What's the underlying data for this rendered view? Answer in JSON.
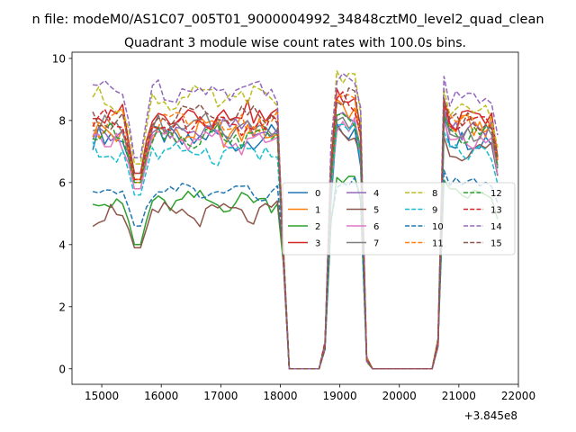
{
  "figure": {
    "suptitle": "n file: modeM0/AS1C07_005T01_9000004992_34848cztM0_level2_quad_clean",
    "background": "#ffffff"
  },
  "chart_data": {
    "type": "line",
    "title": "Quadrant 3 module wise count rates with 100.0s bins.",
    "xlabel": "",
    "ylabel": "",
    "x_offset_label": "+3.845e8",
    "xlim": [
      14500,
      22000
    ],
    "ylim": [
      -0.5,
      10.2
    ],
    "xticks": [
      15000,
      16000,
      17000,
      18000,
      19000,
      20000,
      21000,
      22000
    ],
    "xtick_labels": [
      "15000",
      "16000",
      "17000",
      "18000",
      "19000",
      "20000",
      "21000",
      "22000"
    ],
    "yticks": [
      0,
      2,
      4,
      6,
      8,
      10
    ],
    "ytick_labels": [
      "0",
      "2",
      "4",
      "6",
      "8",
      "10"
    ],
    "grid": false,
    "legend_location": "center-right",
    "legend_ncol": 4,
    "segments": [
      {
        "x_start": 14850,
        "x_end": 17950
      },
      {
        "x_start": 18050,
        "x_end": 18050
      },
      {
        "x_start": 18150,
        "x_end": 18650
      },
      {
        "x_start": 18750,
        "x_end": 18750
      },
      {
        "x_start": 18850,
        "x_end": 19350
      },
      {
        "x_start": 19450,
        "x_end": 19450
      },
      {
        "x_start": 19550,
        "x_end": 20550
      },
      {
        "x_start": 20650,
        "x_end": 20650
      },
      {
        "x_start": 20750,
        "x_end": 21650
      }
    ],
    "series": [
      {
        "name": "0",
        "color": "#1f77b4",
        "dash": "solid",
        "base": 7.4,
        "dip": 1.4,
        "gap": 7.6,
        "tail": 7.4,
        "amp": 0.35,
        "edge": 0.9
      },
      {
        "name": "1",
        "color": "#ff7f0e",
        "dash": "solid",
        "base": 7.6,
        "dip": 1.6,
        "gap": 8.4,
        "tail": 7.8,
        "amp": 0.4,
        "edge": 0.8
      },
      {
        "name": "2",
        "color": "#2ca02c",
        "dash": "solid",
        "base": 5.4,
        "dip": 1.4,
        "gap": 6.2,
        "tail": 5.6,
        "amp": 0.25,
        "edge": 0.6
      },
      {
        "name": "3",
        "color": "#d62728",
        "dash": "solid",
        "base": 8.2,
        "dip": 1.9,
        "gap": 8.9,
        "tail": 8.0,
        "amp": 0.35,
        "edge": 0.9
      },
      {
        "name": "4",
        "color": "#9467bd",
        "dash": "solid",
        "base": 7.7,
        "dip": 1.6,
        "gap": 8.2,
        "tail": 7.7,
        "amp": 0.35,
        "edge": 0.9
      },
      {
        "name": "5",
        "color": "#8c564b",
        "dash": "solid",
        "base": 5.0,
        "dip": 1.1,
        "gap": 7.6,
        "tail": 7.0,
        "amp": 0.3,
        "edge": 0.6
      },
      {
        "name": "6",
        "color": "#e377c2",
        "dash": "solid",
        "base": 7.3,
        "dip": 1.5,
        "gap": 7.8,
        "tail": 7.3,
        "amp": 0.3,
        "edge": 0.8
      },
      {
        "name": "7",
        "color": "#7f7f7f",
        "dash": "solid",
        "base": 7.8,
        "dip": 1.7,
        "gap": 8.0,
        "tail": 7.6,
        "amp": 0.3,
        "edge": 0.8
      },
      {
        "name": "8",
        "color": "#bcbd22",
        "dash": "dashed",
        "base": 8.7,
        "dip": 2.1,
        "gap": 9.3,
        "tail": 8.3,
        "amp": 0.3,
        "edge": 0.9
      },
      {
        "name": "9",
        "color": "#17becf",
        "dash": "dashed",
        "base": 7.0,
        "dip": 1.4,
        "gap": 7.7,
        "tail": 7.0,
        "amp": 0.3,
        "edge": 0.8
      },
      {
        "name": "10",
        "color": "#1f77b4",
        "dash": "dashed",
        "base": 5.7,
        "dip": 1.1,
        "gap": 6.0,
        "tail": 6.0,
        "amp": 0.2,
        "edge": 0.5
      },
      {
        "name": "11",
        "color": "#ff7f0e",
        "dash": "dashed",
        "base": 7.9,
        "dip": 1.8,
        "gap": 8.5,
        "tail": 7.9,
        "amp": 0.35,
        "edge": 0.9
      },
      {
        "name": "12",
        "color": "#2ca02c",
        "dash": "dashed",
        "base": 7.5,
        "dip": 1.5,
        "gap": 8.0,
        "tail": 7.5,
        "amp": 0.3,
        "edge": 0.8
      },
      {
        "name": "13",
        "color": "#d62728",
        "dash": "dashed",
        "base": 7.9,
        "dip": 1.8,
        "gap": 8.6,
        "tail": 7.9,
        "amp": 0.35,
        "edge": 0.9
      },
      {
        "name": "14",
        "color": "#9467bd",
        "dash": "dashed",
        "base": 9.0,
        "dip": 2.2,
        "gap": 9.5,
        "tail": 8.7,
        "amp": 0.3,
        "edge": 0.9
      },
      {
        "name": "15",
        "color": "#8c564b",
        "dash": "dashed",
        "base": 8.1,
        "dip": 1.8,
        "gap": 8.7,
        "tail": 8.0,
        "amp": 0.35,
        "edge": 0.9
      }
    ]
  }
}
